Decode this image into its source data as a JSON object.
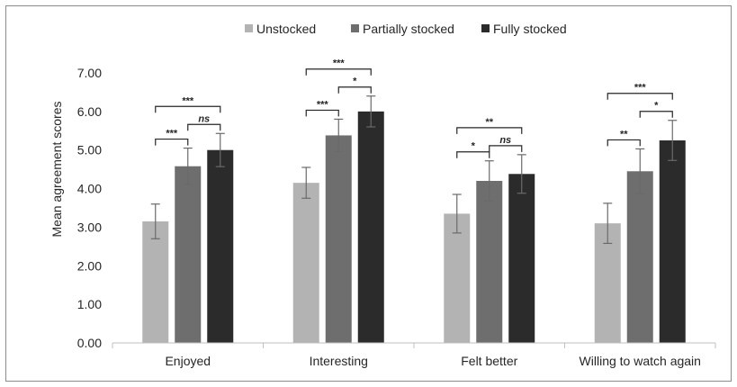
{
  "chart_data": {
    "type": "bar",
    "title": "",
    "xlabel": "",
    "ylabel": "Mean agreement scores",
    "ylim": [
      0,
      7
    ],
    "yticks": [
      "0.00",
      "1.00",
      "2.00",
      "3.00",
      "4.00",
      "5.00",
      "6.00",
      "7.00"
    ],
    "categories": [
      "Enjoyed",
      "Interesting",
      "Felt better",
      "Willing to watch again"
    ],
    "legend_position": "top",
    "series": [
      {
        "name": "Unstocked",
        "color": "#b3b3b3",
        "values": [
          3.15,
          4.15,
          3.35,
          3.1
        ],
        "errors": [
          0.45,
          0.4,
          0.5,
          0.52
        ]
      },
      {
        "name": "Partially stocked",
        "color": "#6e6e6e",
        "values": [
          4.58,
          5.38,
          4.2,
          4.45
        ],
        "errors": [
          0.47,
          0.42,
          0.52,
          0.58
        ]
      },
      {
        "name": "Fully stocked",
        "color": "#2b2b2b",
        "values": [
          5.0,
          6.0,
          4.38,
          5.25
        ],
        "errors": [
          0.43,
          0.4,
          0.5,
          0.52
        ]
      }
    ],
    "significance": [
      [
        {
          "from": 0,
          "to": 1,
          "label": "***"
        },
        {
          "from": 1,
          "to": 2,
          "label": "ns"
        },
        {
          "from": 0,
          "to": 2,
          "label": "***"
        }
      ],
      [
        {
          "from": 0,
          "to": 1,
          "label": "***"
        },
        {
          "from": 1,
          "to": 2,
          "label": "*"
        },
        {
          "from": 0,
          "to": 2,
          "label": "***"
        }
      ],
      [
        {
          "from": 0,
          "to": 1,
          "label": "*"
        },
        {
          "from": 1,
          "to": 2,
          "label": "ns"
        },
        {
          "from": 0,
          "to": 2,
          "label": "**"
        }
      ],
      [
        {
          "from": 0,
          "to": 1,
          "label": "**"
        },
        {
          "from": 1,
          "to": 2,
          "label": "*"
        },
        {
          "from": 0,
          "to": 2,
          "label": "***"
        }
      ]
    ]
  }
}
